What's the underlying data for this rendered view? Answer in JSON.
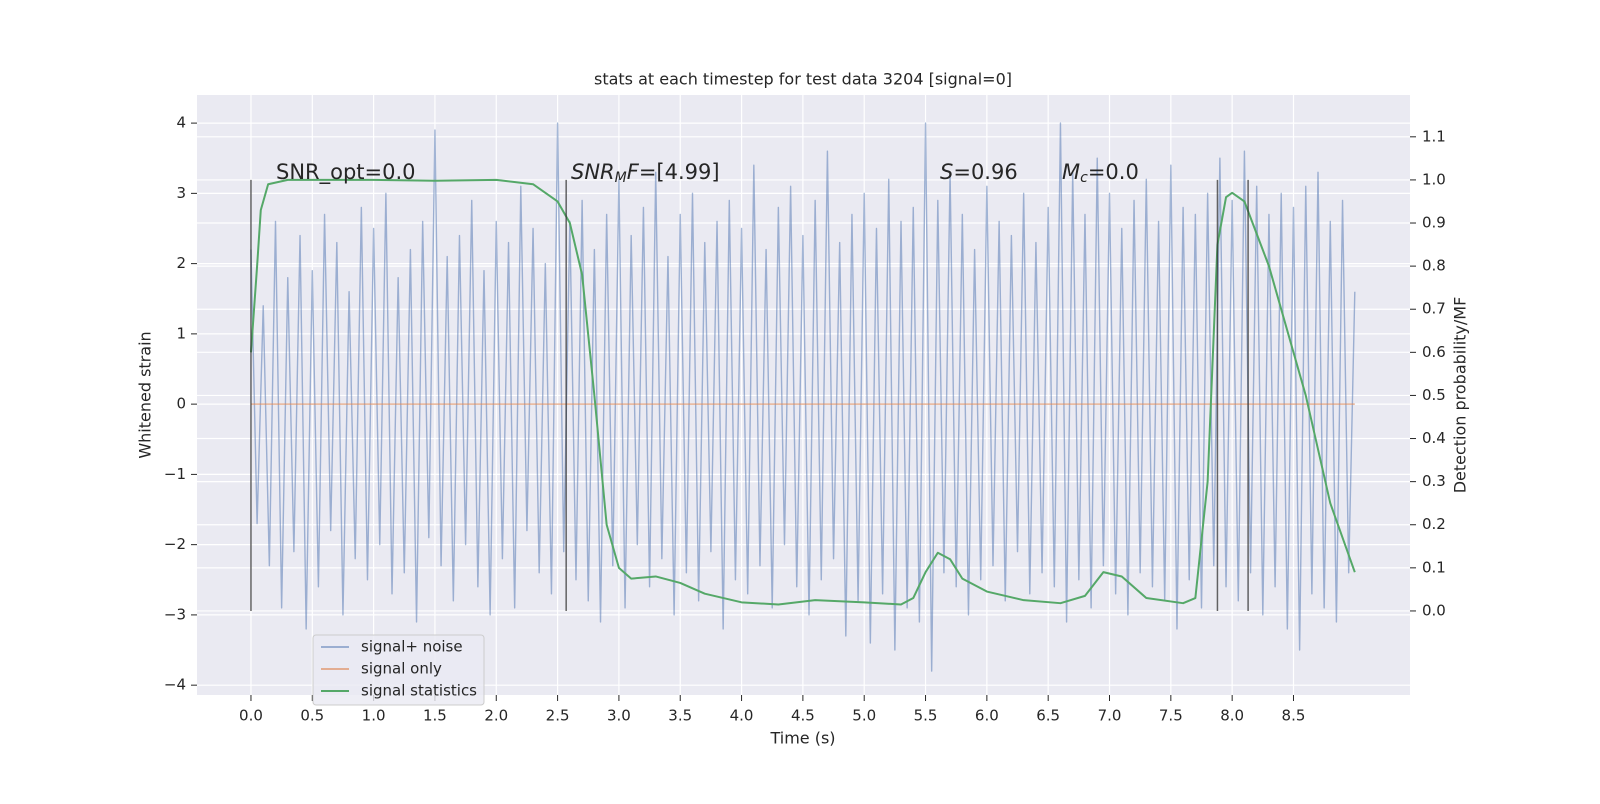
{
  "chart_data": {
    "type": "line",
    "title": "stats at each timestep for test data 3204 [signal=0]",
    "x_label": "Time (s)",
    "y_label": "Whitened strain",
    "y2_label": "Detection probability/MF",
    "xlim": [
      -0.44,
      9.45
    ],
    "ylim": [
      -4.14,
      4.4
    ],
    "y2lim": [
      -0.195,
      1.197
    ],
    "xticks": [
      {
        "value": 0,
        "label": "0.0"
      },
      0.5,
      {
        "value": 1,
        "label": "1.0"
      },
      1.5,
      {
        "value": 2,
        "label": "2.0"
      },
      2.5,
      {
        "value": 3,
        "label": "3.0"
      },
      3.5,
      {
        "value": 4,
        "label": "4.0"
      },
      4.5,
      {
        "value": 5,
        "label": "5.0"
      },
      5.5,
      {
        "value": 6,
        "label": "6.0"
      },
      6.5,
      {
        "value": 7,
        "label": "7.0"
      },
      7.5,
      {
        "value": 8,
        "label": "8.0"
      },
      8.5
    ],
    "yticks": [
      {
        "value": -4,
        "label": "−4"
      },
      {
        "value": -3,
        "label": "−3"
      },
      {
        "value": -2,
        "label": "−2"
      },
      {
        "value": -1,
        "label": "−1"
      },
      0,
      1,
      2,
      3,
      4
    ],
    "y2ticks": [
      {
        "value": 0,
        "label": "0.0"
      },
      0.1,
      0.2,
      0.3,
      0.4,
      0.5,
      0.6,
      0.7,
      0.8,
      0.9,
      {
        "value": 1,
        "label": "1.0"
      },
      1.1
    ],
    "grid": true,
    "legend": "lower left",
    "series": [
      {
        "name": "signal+ noise",
        "color": "#4c72b0",
        "x": [
          0,
          0.05,
          0.1,
          0.15,
          0.2,
          0.25,
          0.3,
          0.35,
          0.4,
          0.45,
          0.5,
          0.55,
          0.6,
          0.65,
          0.7,
          0.75,
          0.8,
          0.85,
          0.9,
          0.95,
          1,
          1.05,
          1.1,
          1.15,
          1.2,
          1.25,
          1.3,
          1.35,
          1.4,
          1.45,
          1.5,
          1.55,
          1.6,
          1.65,
          1.7,
          1.75,
          1.8,
          1.85,
          1.9,
          1.95,
          2,
          2.05,
          2.1,
          2.15,
          2.2,
          2.25,
          2.3,
          2.35,
          2.4,
          2.45,
          2.5,
          2.55,
          2.6,
          2.65,
          2.7,
          2.75,
          2.8,
          2.85,
          2.9,
          2.95,
          3,
          3.05,
          3.1,
          3.15,
          3.2,
          3.25,
          3.3,
          3.35,
          3.4,
          3.45,
          3.5,
          3.55,
          3.6,
          3.65,
          3.7,
          3.75,
          3.8,
          3.85,
          3.9,
          3.95,
          4,
          4.05,
          4.1,
          4.15,
          4.2,
          4.25,
          4.3,
          4.35,
          4.4,
          4.45,
          4.5,
          4.55,
          4.6,
          4.65,
          4.7,
          4.75,
          4.8,
          4.85,
          4.9,
          4.95,
          5,
          5.05,
          5.1,
          5.15,
          5.2,
          5.25,
          5.3,
          5.35,
          5.4,
          5.45,
          5.5,
          5.55,
          5.6,
          5.65,
          5.7,
          5.75,
          5.8,
          5.85,
          5.9,
          5.95,
          6,
          6.05,
          6.1,
          6.15,
          6.2,
          6.25,
          6.3,
          6.35,
          6.4,
          6.45,
          6.5,
          6.55,
          6.6,
          6.65,
          6.7,
          6.75,
          6.8,
          6.85,
          6.9,
          6.95,
          7,
          7.05,
          7.1,
          7.15,
          7.2,
          7.25,
          7.3,
          7.35,
          7.4,
          7.45,
          7.5,
          7.55,
          7.6,
          7.65,
          7.7,
          7.75,
          7.8,
          7.85,
          7.9,
          7.95,
          8,
          8.05,
          8.1,
          8.15,
          8.2,
          8.25,
          8.3,
          8.35,
          8.4,
          8.45,
          8.5,
          8.55,
          8.6,
          8.65,
          8.7,
          8.75,
          8.8,
          8.85,
          8.9,
          8.95,
          9
        ],
        "values": [
          2.2,
          -1.7,
          1.4,
          -2.3,
          2.6,
          -2.9,
          1.8,
          -2.1,
          2.4,
          -3.2,
          1.9,
          -2.6,
          2.7,
          -1.8,
          2.3,
          -3.0,
          1.6,
          -2.2,
          2.8,
          -2.5,
          2.5,
          -2.0,
          3.0,
          -2.7,
          1.8,
          -2.4,
          2.2,
          -3.1,
          2.6,
          -1.9,
          3.9,
          -2.3,
          2.1,
          -2.8,
          2.4,
          -2.0,
          2.9,
          -2.6,
          1.9,
          -3.0,
          2.6,
          -2.2,
          2.3,
          -2.9,
          3.1,
          -1.8,
          2.5,
          -2.4,
          2.0,
          -2.7,
          4.0,
          -2.1,
          2.6,
          -2.5,
          2.9,
          -2.8,
          2.2,
          -3.1,
          2.7,
          -2.3,
          3.2,
          -2.9,
          2.4,
          -2.0,
          2.8,
          -2.6,
          3.3,
          -2.2,
          2.1,
          -3.0,
          2.7,
          -2.4,
          3.0,
          -2.8,
          2.3,
          -2.1,
          2.6,
          -3.2,
          2.9,
          -2.5,
          2.5,
          -2.7,
          3.4,
          -2.3,
          2.2,
          -2.9,
          2.8,
          -2.0,
          3.1,
          -2.6,
          2.4,
          -3.0,
          2.9,
          -2.5,
          3.6,
          -2.2,
          2.3,
          -3.3,
          2.7,
          -2.8,
          3.0,
          -3.4,
          2.5,
          -2.7,
          3.2,
          -3.5,
          2.6,
          -2.9,
          2.8,
          -3.1,
          4.0,
          -3.8,
          2.9,
          -2.4,
          3.3,
          -2.6,
          2.7,
          -3.0,
          2.2,
          -2.5,
          3.1,
          -2.3,
          2.6,
          -2.8,
          2.4,
          -2.1,
          3.0,
          -2.7,
          2.3,
          -2.4,
          2.8,
          -2.6,
          4.0,
          -3.1,
          3.3,
          -2.5,
          2.7,
          -2.9,
          3.5,
          -2.3,
          3.0,
          -2.7,
          2.5,
          -3.0,
          2.9,
          -2.4,
          3.2,
          -2.6,
          2.6,
          -2.8,
          3.4,
          -3.2,
          2.8,
          -2.5,
          2.7,
          -2.9,
          3.0,
          -2.3,
          3.5,
          -2.6,
          2.9,
          -2.8,
          3.6,
          -2.4,
          3.1,
          -3.0,
          2.7,
          -2.6,
          3.0,
          -3.2,
          2.8,
          -3.5,
          3.1,
          -2.7,
          3.3,
          -2.9,
          2.6,
          -3.1,
          2.9,
          -2.4,
          1.6
        ]
      },
      {
        "name": "signal only",
        "color": "#dd8452",
        "x": [
          0,
          9
        ],
        "values": [
          0,
          0
        ]
      },
      {
        "name": "signal statistics",
        "color": "#55a868",
        "axis": "y2",
        "x": [
          0,
          0.05,
          0.08,
          0.14,
          0.3,
          1.0,
          1.5,
          2.0,
          2.3,
          2.5,
          2.6,
          2.7,
          2.8,
          2.9,
          3.0,
          3.1,
          3.3,
          3.5,
          3.7,
          4.0,
          4.3,
          4.6,
          5.0,
          5.3,
          5.4,
          5.5,
          5.6,
          5.7,
          5.8,
          6.0,
          6.3,
          6.6,
          6.8,
          6.95,
          7.1,
          7.3,
          7.6,
          7.7,
          7.8,
          7.88,
          7.95,
          8.0,
          8.1,
          8.3,
          8.6,
          8.8,
          9.0
        ],
        "values": [
          0.6,
          0.8,
          0.93,
          0.99,
          1.0,
          1.0,
          0.998,
          1.0,
          0.99,
          0.95,
          0.9,
          0.78,
          0.5,
          0.2,
          0.1,
          0.075,
          0.08,
          0.065,
          0.04,
          0.02,
          0.015,
          0.025,
          0.02,
          0.015,
          0.03,
          0.09,
          0.135,
          0.12,
          0.075,
          0.045,
          0.025,
          0.018,
          0.035,
          0.09,
          0.08,
          0.03,
          0.018,
          0.03,
          0.3,
          0.85,
          0.96,
          0.97,
          0.95,
          0.8,
          0.5,
          0.25,
          0.09
        ]
      }
    ],
    "vlines": {
      "x": [
        0,
        2.57,
        7.88,
        8.13
      ],
      "y2": [
        0,
        1
      ]
    },
    "annotations": [
      {
        "main": "SNR_opt=0.0"
      },
      {
        "main": "SNR",
        "sub": "M",
        "rest": "F=[4.99]"
      },
      {
        "main": "S",
        "rest": "=0.96"
      },
      {
        "main": "M",
        "sub": "c",
        "rest": "=0.0"
      }
    ]
  }
}
